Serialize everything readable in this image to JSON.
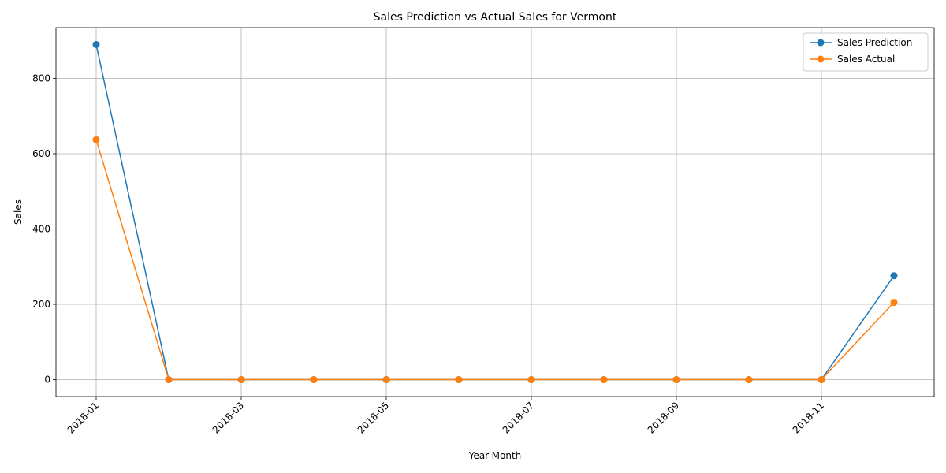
{
  "chart_data": {
    "type": "line",
    "title": "Sales Prediction vs Actual Sales for Vermont",
    "xlabel": "Year-Month",
    "ylabel": "Sales",
    "x": [
      "2018-01",
      "2018-02",
      "2018-03",
      "2018-04",
      "2018-05",
      "2018-06",
      "2018-07",
      "2018-08",
      "2018-09",
      "2018-10",
      "2018-11",
      "2018-12"
    ],
    "x_tick_labels": [
      "2018-01",
      "2018-03",
      "2018-05",
      "2018-07",
      "2018-09",
      "2018-11"
    ],
    "y_ticks": [
      0,
      200,
      400,
      600,
      800
    ],
    "ylim": [
      -45,
      935
    ],
    "grid": true,
    "legend_position": "top-right",
    "series": [
      {
        "name": "Sales Prediction",
        "color": "#1f77b4",
        "values": [
          890,
          0,
          0,
          0,
          0,
          0,
          0,
          0,
          0,
          0,
          0,
          276
        ]
      },
      {
        "name": "Sales Actual",
        "color": "#ff7f0e",
        "values": [
          637,
          0,
          0,
          0,
          0,
          0,
          0,
          0,
          0,
          0,
          0,
          205
        ]
      }
    ]
  }
}
